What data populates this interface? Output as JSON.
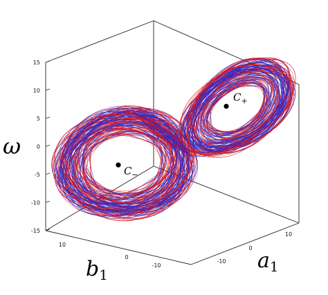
{
  "chart_data": {
    "type": "scatter",
    "projection": "3d",
    "grid": false,
    "title": "",
    "axes": {
      "a1": {
        "label_main": "a",
        "label_sub": "1",
        "ticks": [
          "-10",
          "0",
          "10"
        ],
        "range": [
          -15,
          15
        ]
      },
      "b1": {
        "label_main": "b",
        "label_sub": "1",
        "ticks": [
          "10",
          "0",
          "-10"
        ],
        "range": [
          -15,
          15
        ]
      },
      "omega": {
        "label": "ω",
        "ticks": [
          "15",
          "10",
          "5",
          "0",
          "-5",
          "-10",
          "-15"
        ],
        "range": [
          -15,
          15
        ]
      }
    },
    "series_colors": [
      "#1f2bd6",
      "#e01616"
    ],
    "equilibria": [
      {
        "label_main": "C",
        "label_sub": "+",
        "a1": 7.5,
        "b1": -7.5,
        "omega": 6.8
      },
      {
        "label_main": "C",
        "label_sub": "−",
        "a1": -7.5,
        "b1": 7.5,
        "omega": -4.3
      }
    ]
  }
}
